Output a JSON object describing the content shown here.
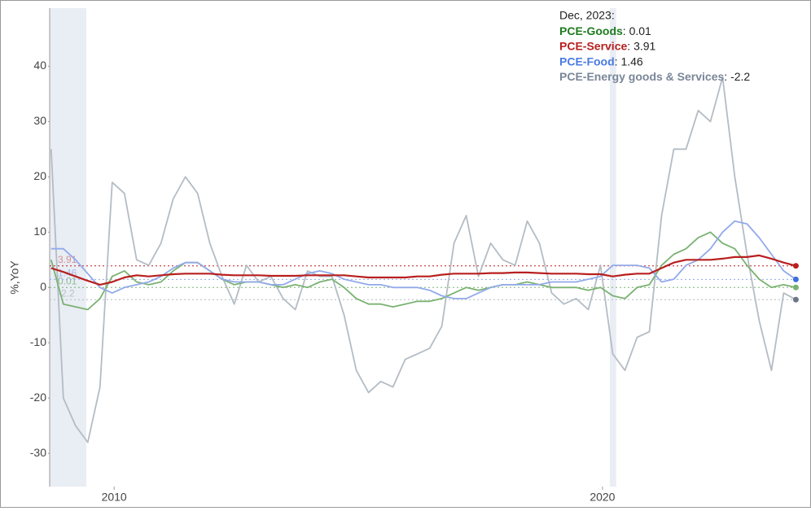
{
  "chart_data": {
    "type": "line",
    "y_label": "%,YoY",
    "hover_title": "Dec, 2023:",
    "hover_separator": ": ",
    "x": [
      2008.71,
      2008.96,
      2009.21,
      2009.46,
      2009.71,
      2009.96,
      2010.21,
      2010.46,
      2010.71,
      2010.96,
      2011.21,
      2011.46,
      2011.71,
      2011.96,
      2012.21,
      2012.46,
      2012.71,
      2012.96,
      2013.21,
      2013.46,
      2013.71,
      2013.96,
      2014.21,
      2014.46,
      2014.71,
      2014.96,
      2015.21,
      2015.46,
      2015.71,
      2015.96,
      2016.21,
      2016.46,
      2016.71,
      2016.96,
      2017.21,
      2017.46,
      2017.71,
      2017.96,
      2018.21,
      2018.46,
      2018.71,
      2018.96,
      2019.21,
      2019.46,
      2019.71,
      2019.96,
      2020.21,
      2020.46,
      2020.71,
      2020.96,
      2021.21,
      2021.46,
      2021.71,
      2021.96,
      2022.21,
      2022.46,
      2022.71,
      2022.96,
      2023.21,
      2023.46,
      2023.71,
      2023.96
    ],
    "xlim": [
      2008.68,
      2024.17
    ],
    "xticks": [
      2010,
      2020
    ],
    "ylim": [
      -36,
      50.5
    ],
    "yticks": [
      -30,
      -20,
      -10,
      0,
      10,
      20,
      30,
      40
    ],
    "shaded": [
      [
        2008.68,
        2009.43
      ],
      [
        2020.15,
        2020.28
      ]
    ],
    "shade_color": "#e9edf4",
    "series": [
      {
        "name": "PCE-Energy goods & Services",
        "color": "#b4bcc4",
        "label_color": "#7a8698",
        "current": -2.2,
        "values": [
          25,
          -20,
          -25,
          -28,
          -18,
          19,
          17,
          5,
          4,
          8,
          16,
          20,
          17,
          8,
          2,
          -3,
          4,
          1,
          2,
          -2,
          -4,
          3,
          2,
          2,
          -5,
          -15,
          -19,
          -17,
          -18,
          -13,
          -12,
          -11,
          -7,
          8,
          13,
          2,
          8,
          5,
          4,
          12,
          8,
          -1,
          -3,
          -2,
          -4,
          4,
          -12,
          -15,
          -9,
          -8,
          13,
          25,
          25,
          32,
          30,
          38,
          20,
          6,
          -6,
          -15,
          -1,
          -2.2
        ]
      },
      {
        "name": "PCE-Goods",
        "color": "#7ab272",
        "label_color": "#1e7b1e",
        "current": 0.01,
        "values": [
          5,
          -3,
          -3.5,
          -4,
          -2,
          2,
          3,
          1,
          0.5,
          1,
          3,
          4.5,
          4.5,
          3,
          1.5,
          0.5,
          1,
          1,
          0.5,
          0,
          0.5,
          0,
          1,
          1.5,
          0,
          -2,
          -3,
          -3,
          -3.5,
          -3,
          -2.5,
          -2.5,
          -2,
          -1,
          0,
          -0.5,
          0,
          0.5,
          0.5,
          1,
          0.5,
          0,
          0,
          0,
          -0.5,
          0,
          -1.5,
          -2,
          0,
          0.5,
          4,
          6,
          7,
          9,
          10,
          8,
          7,
          4,
          1.5,
          0,
          0.5,
          0.01
        ]
      },
      {
        "name": "PCE-Food",
        "color": "#92aaea",
        "label_color": "#4a7be0",
        "current": 1.46,
        "values": [
          7,
          7,
          5,
          2.5,
          0,
          -1,
          0,
          0.5,
          1,
          2,
          3.5,
          4.5,
          4.5,
          3,
          1.5,
          1,
          1,
          1,
          0.5,
          0.5,
          1.5,
          2.5,
          3,
          2.5,
          1.5,
          1,
          0.5,
          0.5,
          0,
          0,
          0,
          -0.5,
          -1.5,
          -2,
          -2,
          -1,
          0,
          0.5,
          0.5,
          0.5,
          0.5,
          1,
          1,
          1,
          1.5,
          2,
          4,
          4,
          4,
          3.5,
          1,
          1.5,
          4,
          5,
          7,
          10,
          12,
          11.5,
          9,
          6,
          3,
          1.46
        ]
      },
      {
        "name": "PCE-Service",
        "color": "#b81f1f",
        "label_color": "#b81f1f",
        "current": 3.91,
        "values": [
          3.5,
          2.8,
          2,
          1.2,
          0.5,
          1,
          1.8,
          2.2,
          2,
          2.2,
          2.4,
          2.5,
          2.5,
          2.5,
          2.3,
          2.2,
          2.2,
          2.2,
          2.1,
          2.1,
          2.1,
          2.2,
          2.2,
          2.2,
          2.2,
          2,
          1.8,
          1.8,
          1.8,
          1.8,
          2,
          2,
          2.3,
          2.5,
          2.5,
          2.5,
          2.6,
          2.6,
          2.7,
          2.7,
          2.6,
          2.5,
          2.5,
          2.5,
          2.4,
          2.4,
          2,
          2.3,
          2.5,
          2.5,
          3.5,
          4.5,
          5,
          5,
          5,
          5.2,
          5.5,
          5.5,
          5.8,
          5.2,
          4.5,
          3.91
        ]
      }
    ],
    "legend_order": [
      1,
      3,
      2,
      0
    ]
  }
}
